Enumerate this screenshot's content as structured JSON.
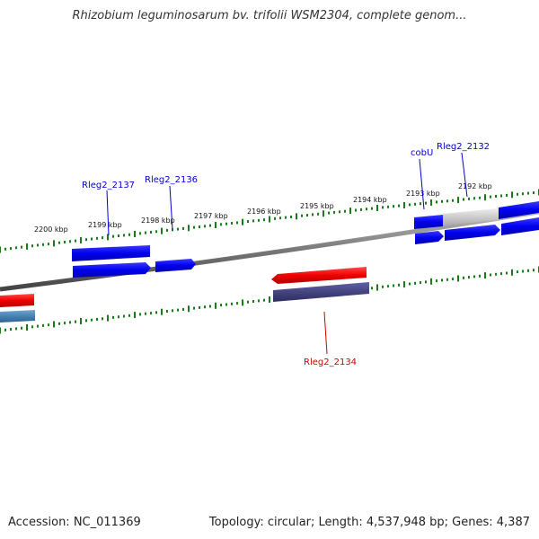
{
  "header": {
    "title": "Rhizobium leguminosarum bv. trifolii WSM2304, complete genom..."
  },
  "scale": {
    "ticks": [
      "2200 kbp",
      "2199 kbp",
      "2198 kbp",
      "2197 kbp",
      "2196 kbp",
      "2195 kbp",
      "2194 kbp",
      "2193 kbp",
      "2192 kbp"
    ]
  },
  "genes": {
    "labels": [
      "Rleg2_2137",
      "Rleg2_2136",
      "cobU",
      "Rleg2_2132",
      "Rleg2_2134"
    ]
  },
  "colors": {
    "forward_gene": "#0000ee",
    "reverse_gene": "#ee0000",
    "highlight_gene": "#44447f",
    "steel_gene": "#4682b4",
    "tick": "#1a7a1a",
    "backbone": "#777777"
  },
  "footer": {
    "accession": "Accession: NC_011369",
    "summary": "Topology: circular; Length: 4,537,948 bp; Genes: 4,387"
  }
}
